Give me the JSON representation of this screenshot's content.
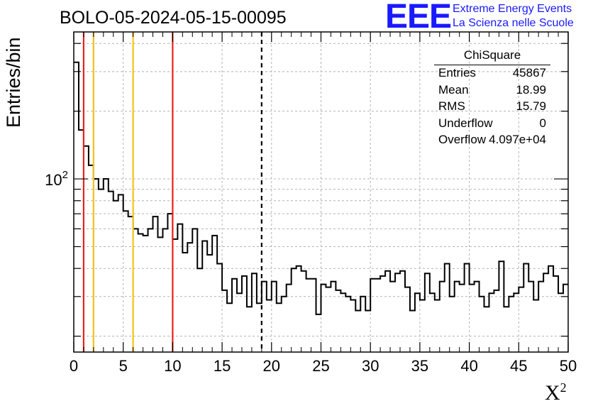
{
  "title": "BOLO-05-2024-05-15-00095",
  "logo": {
    "text": "EEE",
    "line1": "Extreme Energy Events",
    "line2": "La Scienza nelle Scuole",
    "color": "#1a1aff"
  },
  "chart_data": {
    "type": "histogram",
    "title": "BOLO-05-2024-05-15-00095",
    "xlabel": "X",
    "xlabel_superscript": "2",
    "ylabel": "Entries/bin",
    "xlim": [
      0,
      50
    ],
    "ylim": [
      17,
      450
    ],
    "y_scale": "log",
    "grid": true,
    "x_ticks": [
      0,
      5,
      10,
      15,
      20,
      25,
      30,
      35,
      40,
      45,
      50
    ],
    "y_tick_label": "10",
    "y_tick_label_exponent": "2",
    "bin_width": 0.5,
    "bin_start": 0,
    "values": [
      330,
      165,
      140,
      115,
      100,
      90,
      100,
      88,
      80,
      85,
      72,
      68,
      60,
      57,
      56,
      60,
      68,
      55,
      60,
      70,
      54,
      63,
      47,
      52,
      60,
      40,
      53,
      46,
      56,
      42,
      32,
      28,
      36,
      31,
      37,
      27,
      38,
      28,
      35,
      29,
      35,
      28,
      30,
      34,
      40,
      41,
      39,
      36,
      36,
      25,
      34,
      33,
      35,
      32,
      31,
      30,
      29,
      26,
      30,
      26,
      36,
      36,
      37,
      39,
      35,
      38,
      39,
      33,
      26,
      31,
      29,
      38,
      31,
      29,
      35,
      42,
      30,
      35,
      34,
      42,
      34,
      35,
      30,
      27,
      31,
      32,
      43,
      27,
      30,
      31,
      33,
      42,
      35,
      29,
      35,
      38,
      41,
      37,
      31,
      34
    ],
    "vertical_lines": [
      {
        "x": 1,
        "color": "#e8221b",
        "style": "solid"
      },
      {
        "x": 2,
        "color": "#f5c21b",
        "style": "solid"
      },
      {
        "x": 6,
        "color": "#f5c21b",
        "style": "solid"
      },
      {
        "x": 10,
        "color": "#e8221b",
        "style": "solid"
      },
      {
        "x": 19,
        "color": "#000000",
        "style": "dashed"
      }
    ],
    "stats": {
      "title": "ChiSquare",
      "rows": [
        {
          "label": "Entries",
          "value": "45867"
        },
        {
          "label": "Mean",
          "value": "18.99"
        },
        {
          "label": "RMS",
          "value": "15.79"
        },
        {
          "label": "Underflow",
          "value": "0"
        },
        {
          "label": "Overflow",
          "value": "4.097e+04"
        }
      ]
    }
  }
}
